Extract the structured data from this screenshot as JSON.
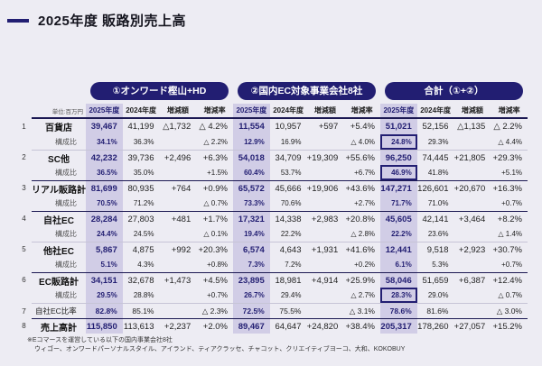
{
  "page": {
    "title": "2025年度 販路別売上高",
    "unit_label": "単位:百万円",
    "footnote_line1": "※Eコマースを運営している以下の国内事業会社8社",
    "footnote_line2": "ウィゴー、オンワードパーソナルスタイル、アイランド、ティアクラッセ、チャコット、クリエイティブヨーコ、大和、KOKOBUY"
  },
  "colors": {
    "accent_navy": "#221e72",
    "highlight_lavender": "#d1cde6",
    "page_background": "#edecf3",
    "heavy_rule": "#1b1852"
  },
  "table": {
    "groups": [
      {
        "label": "①オンワード樫山+HD"
      },
      {
        "label": "②国内EC対象事業会社8社"
      },
      {
        "label": "合計（①+②）"
      }
    ],
    "column_headers": [
      "2025年度",
      "2024年度",
      "増減額",
      "増減率"
    ],
    "ratio_label": "構成比",
    "rows": [
      {
        "type": "value",
        "num": "1",
        "label": "百貨店",
        "border": "none",
        "cells": [
          "39,467",
          "41,199",
          "△1,732",
          "△ 4.2%",
          "11,554",
          "10,957",
          "+597",
          "+5.4%",
          "51,021",
          "52,156",
          "△1,135",
          "△ 2.2%"
        ]
      },
      {
        "type": "ratio",
        "label": "構成比",
        "border": "none",
        "boxed": [
          8
        ],
        "cells": [
          "34.1%",
          "36.3%",
          "",
          "△ 2.2%",
          "12.9%",
          "16.9%",
          "",
          "△ 4.0%",
          "24.8%",
          "29.3%",
          "",
          "△ 4.4%"
        ]
      },
      {
        "type": "value",
        "num": "2",
        "label": "SC他",
        "border": "light",
        "cells": [
          "42,232",
          "39,736",
          "+2,496",
          "+6.3%",
          "54,018",
          "34,709",
          "+19,309",
          "+55.6%",
          "96,250",
          "74,445",
          "+21,805",
          "+29.3%"
        ]
      },
      {
        "type": "ratio",
        "label": "構成比",
        "border": "none",
        "boxed": [
          8
        ],
        "cells": [
          "36.5%",
          "35.0%",
          "",
          "+1.5%",
          "60.4%",
          "53.7%",
          "",
          "+6.7%",
          "46.9%",
          "41.8%",
          "",
          "+5.1%"
        ]
      },
      {
        "type": "value",
        "num": "3",
        "label": "リアル販路計",
        "border": "heavy",
        "cells": [
          "81,699",
          "80,935",
          "+764",
          "+0.9%",
          "65,572",
          "45,666",
          "+19,906",
          "+43.6%",
          "147,271",
          "126,601",
          "+20,670",
          "+16.3%"
        ]
      },
      {
        "type": "ratio",
        "label": "構成比",
        "border": "none",
        "cells": [
          "70.5%",
          "71.2%",
          "",
          "△ 0.7%",
          "73.3%",
          "70.6%",
          "",
          "+2.7%",
          "71.7%",
          "71.0%",
          "",
          "+0.7%"
        ]
      },
      {
        "type": "value",
        "num": "4",
        "label": "自社EC",
        "border": "heavy",
        "cells": [
          "28,284",
          "27,803",
          "+481",
          "+1.7%",
          "17,321",
          "14,338",
          "+2,983",
          "+20.8%",
          "45,605",
          "42,141",
          "+3,464",
          "+8.2%"
        ]
      },
      {
        "type": "ratio",
        "label": "構成比",
        "border": "none",
        "cells": [
          "24.4%",
          "24.5%",
          "",
          "△ 0.1%",
          "19.4%",
          "22.2%",
          "",
          "△ 2.8%",
          "22.2%",
          "23.6%",
          "",
          "△ 1.4%"
        ]
      },
      {
        "type": "value",
        "num": "5",
        "label": "他社EC",
        "border": "light",
        "cells": [
          "5,867",
          "4,875",
          "+992",
          "+20.3%",
          "6,574",
          "4,643",
          "+1,931",
          "+41.6%",
          "12,441",
          "9,518",
          "+2,923",
          "+30.7%"
        ]
      },
      {
        "type": "ratio",
        "label": "構成比",
        "border": "none",
        "cells": [
          "5.1%",
          "4.3%",
          "",
          "+0.8%",
          "7.3%",
          "7.2%",
          "",
          "+0.2%",
          "6.1%",
          "5.3%",
          "",
          "+0.7%"
        ]
      },
      {
        "type": "value",
        "num": "6",
        "label": "EC販路計",
        "border": "heavy",
        "cells": [
          "34,151",
          "32,678",
          "+1,473",
          "+4.5%",
          "23,895",
          "18,981",
          "+4,914",
          "+25.9%",
          "58,046",
          "51,659",
          "+6,387",
          "+12.4%"
        ]
      },
      {
        "type": "ratio",
        "label": "構成比",
        "border": "none",
        "boxed": [
          8
        ],
        "cells": [
          "29.5%",
          "28.8%",
          "",
          "+0.7%",
          "26.7%",
          "29.4%",
          "",
          "△ 2.7%",
          "28.3%",
          "29.0%",
          "",
          "△ 0.7%"
        ]
      },
      {
        "type": "single",
        "num": "7",
        "label": "自社EC比率",
        "border": "light",
        "cells": [
          "82.8%",
          "85.1%",
          "",
          "△ 2.3%",
          "72.5%",
          "75.5%",
          "",
          "△ 3.1%",
          "78.6%",
          "81.6%",
          "",
          "△ 3.0%"
        ]
      },
      {
        "type": "total",
        "num": "8",
        "label": "売上高計",
        "border": "heavy",
        "cells": [
          "115,850",
          "113,613",
          "+2,237",
          "+2.0%",
          "89,467",
          "64,647",
          "+24,820",
          "+38.4%",
          "205,317",
          "178,260",
          "+27,057",
          "+15.2%"
        ]
      }
    ]
  }
}
